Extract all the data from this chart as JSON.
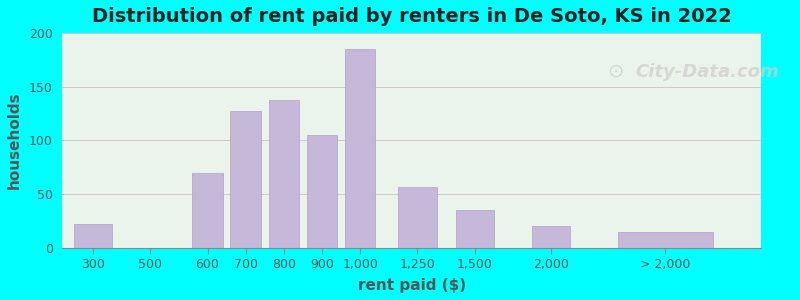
{
  "title": "Distribution of rent paid by renters in De Soto, KS in 2022",
  "xlabel": "rent paid ($)",
  "ylabel": "households",
  "background_outer": "#00FFFF",
  "background_inner_left": "#d4ecd4",
  "background_inner_right": "#f0f0e8",
  "bar_color": "#c5b8d8",
  "bar_edge_color": "#b0a0cc",
  "title_fontsize": 14,
  "axis_label_fontsize": 11,
  "tick_label_fontsize": 9,
  "tick_label_color": "#555555",
  "title_color": "#222222",
  "ylabel_color": "#555555",
  "xlabel_color": "#555555",
  "ylim": [
    0,
    200
  ],
  "yticks": [
    0,
    50,
    100,
    150,
    200
  ],
  "categories": [
    "300",
    "500",
    "600",
    "700",
    "800",
    "900",
    "1,000",
    "1,250",
    "1,500",
    "2,000",
    "> 2,000"
  ],
  "values": [
    22,
    0,
    70,
    127,
    138,
    105,
    185,
    57,
    35,
    20,
    15
  ],
  "bar_positions": [
    0,
    1.5,
    3,
    4,
    5,
    6,
    7,
    8.5,
    10,
    12,
    15
  ],
  "bar_widths": [
    1.0,
    1.0,
    0.8,
    0.8,
    0.8,
    0.8,
    0.8,
    1.0,
    1.0,
    1.0,
    2.5
  ],
  "watermark": "City-Data.com"
}
